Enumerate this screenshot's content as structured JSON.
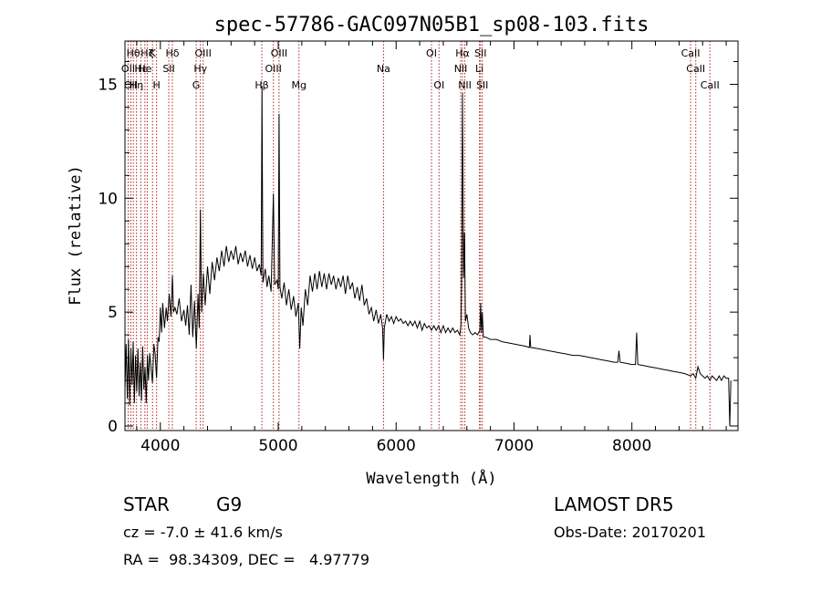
{
  "chart_data": {
    "type": "line",
    "title": "spec-57786-GAC097N05B1_sp08-103.fits",
    "xlabel": "Wavelength (Å)",
    "ylabel": "Flux (relative)",
    "xlim": [
      3700,
      8900
    ],
    "ylim": [
      -0.2,
      16.9
    ],
    "xticks": [
      4000,
      5000,
      6000,
      7000,
      8000
    ],
    "yticks": [
      0,
      5,
      10,
      15
    ],
    "line_color": "#000000",
    "marker_color": "#b22222",
    "grid": false,
    "series": [
      {
        "values": [
          [
            3700,
            1.6
          ],
          [
            3710,
            3.6
          ],
          [
            3720,
            1.2
          ],
          [
            3730,
            3.8
          ],
          [
            3740,
            0.9
          ],
          [
            3750,
            3.4
          ],
          [
            3760,
            1.8
          ],
          [
            3770,
            3.7
          ],
          [
            3780,
            1.0
          ],
          [
            3790,
            3.1
          ],
          [
            3800,
            1.5
          ],
          [
            3810,
            3.4
          ],
          [
            3820,
            1.3
          ],
          [
            3830,
            2.8
          ],
          [
            3840,
            1.1
          ],
          [
            3850,
            3.5
          ],
          [
            3860,
            1.6
          ],
          [
            3870,
            2.6
          ],
          [
            3880,
            1.0
          ],
          [
            3890,
            3.1
          ],
          [
            3900,
            2.0
          ],
          [
            3910,
            3.2
          ],
          [
            3920,
            2.6
          ],
          [
            3933,
            1.9
          ],
          [
            3945,
            3.6
          ],
          [
            3955,
            3.2
          ],
          [
            3968,
            2.1
          ],
          [
            3980,
            3.9
          ],
          [
            3990,
            3.7
          ],
          [
            4000,
            5.2
          ],
          [
            4010,
            4.1
          ],
          [
            4020,
            5.4
          ],
          [
            4035,
            4.3
          ],
          [
            4050,
            5.2
          ],
          [
            4060,
            4.6
          ],
          [
            4075,
            5.8
          ],
          [
            4090,
            4.8
          ],
          [
            4102,
            6.6
          ],
          [
            4112,
            5.0
          ],
          [
            4125,
            5.2
          ],
          [
            4140,
            4.9
          ],
          [
            4160,
            5.6
          ],
          [
            4180,
            4.6
          ],
          [
            4200,
            5.1
          ],
          [
            4215,
            4.4
          ],
          [
            4230,
            5.3
          ],
          [
            4245,
            4.0
          ],
          [
            4260,
            6.2
          ],
          [
            4275,
            3.9
          ],
          [
            4290,
            5.5
          ],
          [
            4305,
            3.4
          ],
          [
            4320,
            5.8
          ],
          [
            4330,
            4.3
          ],
          [
            4340,
            9.5
          ],
          [
            4350,
            5.0
          ],
          [
            4365,
            6.7
          ],
          [
            4380,
            5.3
          ],
          [
            4400,
            7.0
          ],
          [
            4420,
            5.8
          ],
          [
            4440,
            7.2
          ],
          [
            4460,
            6.4
          ],
          [
            4480,
            7.4
          ],
          [
            4500,
            6.8
          ],
          [
            4520,
            7.7
          ],
          [
            4540,
            7.0
          ],
          [
            4560,
            7.9
          ],
          [
            4580,
            7.2
          ],
          [
            4600,
            7.7
          ],
          [
            4620,
            7.3
          ],
          [
            4640,
            7.9
          ],
          [
            4660,
            7.1
          ],
          [
            4680,
            7.6
          ],
          [
            4700,
            7.2
          ],
          [
            4720,
            7.7
          ],
          [
            4740,
            7.0
          ],
          [
            4760,
            7.5
          ],
          [
            4780,
            6.9
          ],
          [
            4800,
            7.4
          ],
          [
            4820,
            6.8
          ],
          [
            4840,
            7.1
          ],
          [
            4855,
            6.6
          ],
          [
            4862,
            14.9
          ],
          [
            4870,
            6.3
          ],
          [
            4890,
            6.9
          ],
          [
            4905,
            6.1
          ],
          [
            4920,
            6.6
          ],
          [
            4940,
            5.9
          ],
          [
            4959,
            10.2
          ],
          [
            4970,
            6.2
          ],
          [
            4990,
            6.4
          ],
          [
            5000,
            6.0
          ],
          [
            5007,
            13.7
          ],
          [
            5015,
            6.1
          ],
          [
            5030,
            5.6
          ],
          [
            5050,
            6.3
          ],
          [
            5070,
            5.3
          ],
          [
            5090,
            6.0
          ],
          [
            5110,
            5.1
          ],
          [
            5130,
            5.7
          ],
          [
            5150,
            4.8
          ],
          [
            5170,
            5.4
          ],
          [
            5183,
            3.4
          ],
          [
            5195,
            5.2
          ],
          [
            5210,
            4.4
          ],
          [
            5230,
            6.0
          ],
          [
            5250,
            5.3
          ],
          [
            5270,
            6.6
          ],
          [
            5290,
            5.9
          ],
          [
            5310,
            6.7
          ],
          [
            5330,
            6.0
          ],
          [
            5350,
            6.8
          ],
          [
            5370,
            6.1
          ],
          [
            5390,
            6.7
          ],
          [
            5410,
            6.0
          ],
          [
            5430,
            6.7
          ],
          [
            5450,
            6.2
          ],
          [
            5470,
            6.6
          ],
          [
            5490,
            6.0
          ],
          [
            5510,
            6.5
          ],
          [
            5530,
            6.1
          ],
          [
            5550,
            6.6
          ],
          [
            5570,
            5.8
          ],
          [
            5590,
            6.6
          ],
          [
            5610,
            6.0
          ],
          [
            5630,
            6.3
          ],
          [
            5650,
            5.6
          ],
          [
            5670,
            6.1
          ],
          [
            5690,
            5.5
          ],
          [
            5710,
            6.2
          ],
          [
            5730,
            5.3
          ],
          [
            5750,
            5.6
          ],
          [
            5770,
            4.9
          ],
          [
            5790,
            5.2
          ],
          [
            5810,
            4.6
          ],
          [
            5830,
            5.1
          ],
          [
            5850,
            4.5
          ],
          [
            5870,
            4.9
          ],
          [
            5885,
            4.3
          ],
          [
            5893,
            2.9
          ],
          [
            5900,
            4.3
          ],
          [
            5920,
            4.9
          ],
          [
            5940,
            4.6
          ],
          [
            5960,
            4.8
          ],
          [
            5980,
            4.5
          ],
          [
            6000,
            4.8
          ],
          [
            6020,
            4.6
          ],
          [
            6040,
            4.7
          ],
          [
            6060,
            4.5
          ],
          [
            6080,
            4.6
          ],
          [
            6100,
            4.4
          ],
          [
            6120,
            4.6
          ],
          [
            6140,
            4.4
          ],
          [
            6160,
            4.6
          ],
          [
            6180,
            4.3
          ],
          [
            6200,
            4.6
          ],
          [
            6220,
            4.2
          ],
          [
            6240,
            4.5
          ],
          [
            6260,
            4.3
          ],
          [
            6280,
            4.4
          ],
          [
            6300,
            4.2
          ],
          [
            6320,
            4.4
          ],
          [
            6340,
            4.2
          ],
          [
            6360,
            4.4
          ],
          [
            6380,
            4.1
          ],
          [
            6400,
            4.4
          ],
          [
            6420,
            4.1
          ],
          [
            6440,
            4.3
          ],
          [
            6460,
            4.1
          ],
          [
            6480,
            4.3
          ],
          [
            6500,
            4.1
          ],
          [
            6520,
            4.2
          ],
          [
            6540,
            4.0
          ],
          [
            6550,
            4.4
          ],
          [
            6556,
            7.0
          ],
          [
            6563,
            14.6
          ],
          [
            6572,
            6.5
          ],
          [
            6580,
            8.5
          ],
          [
            6588,
            4.6
          ],
          [
            6600,
            4.9
          ],
          [
            6615,
            4.3
          ],
          [
            6630,
            4.1
          ],
          [
            6650,
            4.0
          ],
          [
            6670,
            4.1
          ],
          [
            6690,
            4.0
          ],
          [
            6710,
            4.2
          ],
          [
            6717,
            5.4
          ],
          [
            6724,
            4.1
          ],
          [
            6731,
            5.0
          ],
          [
            6740,
            3.9
          ],
          [
            6760,
            3.9
          ],
          [
            6800,
            3.8
          ],
          [
            6850,
            3.8
          ],
          [
            6900,
            3.7
          ],
          [
            6950,
            3.65
          ],
          [
            7000,
            3.6
          ],
          [
            7050,
            3.55
          ],
          [
            7100,
            3.5
          ],
          [
            7130,
            3.45
          ],
          [
            7136,
            4.0
          ],
          [
            7142,
            3.45
          ],
          [
            7200,
            3.4
          ],
          [
            7250,
            3.35
          ],
          [
            7300,
            3.3
          ],
          [
            7350,
            3.25
          ],
          [
            7400,
            3.2
          ],
          [
            7450,
            3.15
          ],
          [
            7500,
            3.1
          ],
          [
            7550,
            3.1
          ],
          [
            7600,
            3.05
          ],
          [
            7650,
            3.0
          ],
          [
            7700,
            2.95
          ],
          [
            7750,
            2.9
          ],
          [
            7800,
            2.85
          ],
          [
            7850,
            2.8
          ],
          [
            7880,
            2.8
          ],
          [
            7890,
            3.3
          ],
          [
            7900,
            2.8
          ],
          [
            7950,
            2.75
          ],
          [
            8000,
            2.7
          ],
          [
            8030,
            2.7
          ],
          [
            8040,
            4.1
          ],
          [
            8050,
            2.7
          ],
          [
            8100,
            2.65
          ],
          [
            8150,
            2.6
          ],
          [
            8200,
            2.55
          ],
          [
            8250,
            2.5
          ],
          [
            8300,
            2.45
          ],
          [
            8350,
            2.4
          ],
          [
            8400,
            2.35
          ],
          [
            8450,
            2.3
          ],
          [
            8498,
            2.2
          ],
          [
            8520,
            2.3
          ],
          [
            8542,
            2.1
          ],
          [
            8560,
            2.6
          ],
          [
            8580,
            2.3
          ],
          [
            8600,
            2.2
          ],
          [
            8620,
            2.1
          ],
          [
            8640,
            2.2
          ],
          [
            8662,
            2.0
          ],
          [
            8680,
            2.2
          ],
          [
            8700,
            2.1
          ],
          [
            8720,
            2.0
          ],
          [
            8740,
            2.2
          ],
          [
            8760,
            2.0
          ],
          [
            8780,
            2.2
          ],
          [
            8800,
            2.1
          ],
          [
            8820,
            2.1
          ],
          [
            8830,
            0.0
          ],
          [
            8840,
            2.0
          ]
        ]
      }
    ],
    "line_markers": [
      {
        "x": 3727,
        "label": "OII",
        "row": 2
      },
      {
        "x": 3750,
        "label": "OII",
        "row": 3
      },
      {
        "x": 3771,
        "label": "Hθ",
        "row": 1
      },
      {
        "x": 3798,
        "label": "Hη",
        "row": 3
      },
      {
        "x": 3835,
        "label": "Hε",
        "row": 2
      },
      {
        "x": 3869,
        "label": "He",
        "row": 2
      },
      {
        "x": 3889,
        "label": "Hζ",
        "row": 1
      },
      {
        "x": 3934,
        "label": "K",
        "row": 1
      },
      {
        "x": 3968,
        "label": "H",
        "row": 3
      },
      {
        "x": 4072,
        "label": "SII",
        "row": 2
      },
      {
        "x": 4102,
        "label": "Hδ",
        "row": 1
      },
      {
        "x": 4304,
        "label": "G",
        "row": 3
      },
      {
        "x": 4340,
        "label": "Hγ",
        "row": 2
      },
      {
        "x": 4363,
        "label": "OIII",
        "row": 1
      },
      {
        "x": 4861,
        "label": "Hβ",
        "row": 3
      },
      {
        "x": 4959,
        "label": "OIII",
        "row": 2
      },
      {
        "x": 5007,
        "label": "OIII",
        "row": 1
      },
      {
        "x": 5176,
        "label": "Mg",
        "row": 3
      },
      {
        "x": 5893,
        "label": "Na",
        "row": 2
      },
      {
        "x": 6300,
        "label": "OI",
        "row": 1
      },
      {
        "x": 6364,
        "label": "OI",
        "row": 3
      },
      {
        "x": 6548,
        "label": "NII",
        "row": 2
      },
      {
        "x": 6563,
        "label": "Hα",
        "row": 1
      },
      {
        "x": 6583,
        "label": "NII",
        "row": 3
      },
      {
        "x": 6707,
        "label": "Li",
        "row": 2
      },
      {
        "x": 6716,
        "label": "SII",
        "row": 1
      },
      {
        "x": 6731,
        "label": "SII",
        "row": 3
      },
      {
        "x": 8498,
        "label": "CaII",
        "row": 1
      },
      {
        "x": 8542,
        "label": "CaII",
        "row": 2
      },
      {
        "x": 8662,
        "label": "CaII",
        "row": 3
      }
    ]
  },
  "info": {
    "class": "STAR",
    "subclass": "G9",
    "survey": "LAMOST DR5",
    "redshift": "cz = -7.0 ± 41.6 km/s",
    "obs_date": "Obs-Date: 20170201",
    "coords": "RA =  98.34309, DEC =   4.97779"
  }
}
